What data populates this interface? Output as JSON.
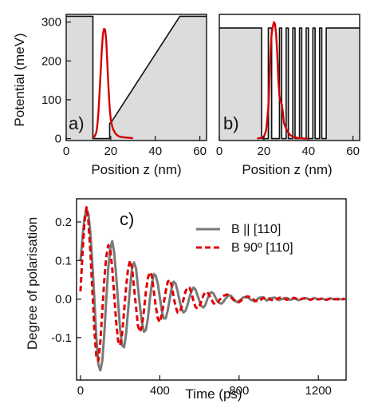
{
  "chart_data": [
    {
      "panel": "a)",
      "type": "line",
      "ylabel": "Potential (meV)",
      "xlabel": "Position z (nm)",
      "xlim": [
        0,
        63
      ],
      "ylim": [
        -5,
        320
      ],
      "xticks": [
        0,
        20,
        40,
        60
      ],
      "yticks": [
        0,
        100,
        200,
        300
      ],
      "fill": "#dcdcdc",
      "series": [
        {
          "color": "#111111",
          "x": [
            0,
            12,
            12,
            19.5,
            19.5,
            20,
            51,
            63
          ],
          "y": [
            315,
            315,
            0,
            0,
            40,
            40,
            315,
            315
          ]
        },
        {
          "color": "#d40000",
          "x": [
            12.5,
            13.5,
            14,
            14.5,
            15,
            15.5,
            16,
            16.5,
            17,
            17.5,
            18,
            18.5,
            19,
            19.5,
            20,
            20.5,
            21,
            22,
            23,
            24,
            26,
            28,
            30
          ],
          "y": [
            3,
            15,
            35,
            70,
            120,
            175,
            230,
            270,
            283,
            280,
            250,
            190,
            130,
            80,
            50,
            35,
            25,
            14,
            8,
            5,
            3,
            2,
            1
          ]
        }
      ]
    },
    {
      "panel": "b)",
      "type": "line",
      "xlabel": "Position z (nm)",
      "xlim": [
        0,
        63
      ],
      "ylim": [
        -5,
        320
      ],
      "xticks": [
        0,
        20,
        40,
        60
      ],
      "fill": "#dcdcdc",
      "series": [
        {
          "color": "#111111",
          "x": [
            0,
            19,
            19,
            22,
            22,
            23.5,
            23.5,
            27,
            27,
            28,
            28,
            30,
            30,
            31,
            31,
            33,
            33,
            34,
            34,
            36,
            36,
            37,
            37,
            39,
            39,
            40,
            40,
            42,
            42,
            43,
            43,
            45,
            45,
            46,
            46,
            48,
            48,
            63
          ],
          "y": [
            285,
            285,
            0,
            0,
            285,
            285,
            0,
            0,
            285,
            285,
            0,
            0,
            285,
            285,
            0,
            0,
            285,
            285,
            0,
            0,
            285,
            285,
            0,
            0,
            285,
            285,
            0,
            0,
            285,
            285,
            0,
            0,
            285,
            285,
            0,
            0,
            285,
            285
          ]
        },
        {
          "color": "#d40000",
          "x": [
            17,
            19,
            20,
            21,
            22,
            22.5,
            23,
            23.5,
            24,
            24.5,
            25,
            25.5,
            26,
            26.5,
            27,
            27.5,
            28,
            28.5,
            29,
            30,
            31,
            32,
            33,
            34,
            35,
            36,
            38,
            40
          ],
          "y": [
            0,
            2,
            5,
            20,
            80,
            150,
            220,
            270,
            288,
            300,
            295,
            270,
            220,
            150,
            110,
            95,
            90,
            70,
            40,
            25,
            15,
            8,
            5,
            3,
            2,
            1,
            0,
            0
          ]
        }
      ]
    },
    {
      "panel": "c)",
      "type": "line",
      "ylabel": "Degree of polarisation",
      "xlabel": "Time (ps)",
      "xlim": [
        -20,
        1340
      ],
      "ylim": [
        -0.21,
        0.26
      ],
      "xticks": [
        0,
        400,
        800,
        1200
      ],
      "yticks": [
        -0.1,
        0.0,
        0.1,
        0.2
      ],
      "legend": "top-right",
      "series": [
        {
          "name": "B || [110]",
          "color": "#7a7a7a",
          "style": "solid",
          "x": [
            0,
            10,
            20,
            30,
            40,
            50,
            60,
            70,
            80,
            90,
            100,
            110,
            120,
            130,
            140,
            150,
            160,
            170,
            180,
            190,
            200,
            210,
            220,
            230,
            240,
            250,
            260,
            270,
            280,
            290,
            300,
            310,
            320,
            330,
            340,
            350,
            360,
            370,
            380,
            390,
            400,
            410,
            420,
            430,
            440,
            450,
            460,
            470,
            480,
            490,
            500,
            510,
            520,
            530,
            540,
            550,
            560,
            570,
            580,
            590,
            600,
            610,
            620,
            630,
            640,
            650,
            660,
            670,
            680,
            690,
            700,
            710,
            720,
            730,
            740,
            750,
            760,
            770,
            780,
            790,
            800,
            820,
            840,
            860,
            880,
            900,
            920,
            940,
            960,
            980,
            1000,
            1020,
            1040,
            1060,
            1080,
            1100,
            1120,
            1140,
            1160,
            1180,
            1200,
            1220,
            1240,
            1260,
            1280,
            1300,
            1320,
            1335
          ],
          "y": [
            0.1,
            0.16,
            0.21,
            0.235,
            0.22,
            0.17,
            0.09,
            0.0,
            -0.1,
            -0.17,
            -0.185,
            -0.16,
            -0.09,
            0.0,
            0.08,
            0.13,
            0.15,
            0.12,
            0.06,
            -0.01,
            -0.08,
            -0.12,
            -0.125,
            -0.09,
            -0.03,
            0.03,
            0.08,
            0.095,
            0.08,
            0.03,
            -0.02,
            -0.06,
            -0.085,
            -0.08,
            -0.05,
            0.0,
            0.04,
            0.065,
            0.06,
            0.04,
            0.005,
            -0.03,
            -0.05,
            -0.05,
            -0.03,
            0.0,
            0.03,
            0.045,
            0.04,
            0.02,
            -0.005,
            -0.025,
            -0.035,
            -0.03,
            -0.015,
            0.005,
            0.02,
            0.03,
            0.025,
            0.01,
            -0.005,
            -0.018,
            -0.022,
            -0.015,
            0.0,
            0.012,
            0.018,
            0.015,
            0.005,
            -0.005,
            -0.01,
            -0.012,
            -0.008,
            0.0,
            0.006,
            0.01,
            0.008,
            0.002,
            -0.004,
            -0.008,
            -0.005,
            0.004,
            0.006,
            -0.002,
            -0.006,
            0.003,
            0.005,
            -0.004,
            0.002,
            0.004,
            -0.003,
            0.001,
            0.003,
            -0.002,
            0.002,
            -0.003,
            0.001,
            0.002,
            -0.002,
            0.003,
            -0.001,
            0.001,
            -0.002,
            0.002,
            -0.001,
            0.001,
            -0.001,
            0.0
          ]
        },
        {
          "name": "B 90º [110]",
          "color": "#e00000",
          "style": "dashed",
          "x": [
            0,
            10,
            20,
            30,
            40,
            50,
            60,
            70,
            80,
            90,
            100,
            110,
            120,
            130,
            140,
            150,
            160,
            170,
            180,
            190,
            200,
            210,
            220,
            230,
            240,
            250,
            260,
            270,
            280,
            290,
            300,
            310,
            320,
            330,
            340,
            350,
            360,
            370,
            380,
            390,
            400,
            410,
            420,
            430,
            440,
            450,
            460,
            470,
            480,
            490,
            500,
            510,
            520,
            530,
            540,
            550,
            560,
            570,
            580,
            590,
            600,
            610,
            620,
            630,
            640,
            650,
            660,
            670,
            680,
            690,
            700,
            720,
            740,
            760,
            780,
            800,
            820,
            840,
            860,
            880,
            900,
            920,
            940,
            960,
            980,
            1000,
            1020,
            1040,
            1060,
            1080,
            1100,
            1120,
            1140,
            1160,
            1180,
            1200,
            1220,
            1240,
            1260,
            1280,
            1300,
            1320,
            1335
          ],
          "y": [
            0.02,
            0.12,
            0.2,
            0.238,
            0.2,
            0.12,
            0.02,
            -0.08,
            -0.15,
            -0.16,
            -0.11,
            -0.03,
            0.05,
            0.11,
            0.14,
            0.13,
            0.08,
            0.01,
            -0.06,
            -0.11,
            -0.12,
            -0.09,
            -0.03,
            0.03,
            0.08,
            0.1,
            0.08,
            0.03,
            -0.02,
            -0.07,
            -0.085,
            -0.07,
            -0.03,
            0.02,
            0.055,
            0.07,
            0.06,
            0.02,
            -0.02,
            -0.05,
            -0.06,
            -0.04,
            -0.01,
            0.02,
            0.045,
            0.05,
            0.035,
            0.005,
            -0.02,
            -0.035,
            -0.035,
            -0.02,
            0.0,
            0.02,
            0.03,
            0.03,
            0.015,
            -0.005,
            -0.02,
            -0.025,
            -0.018,
            -0.005,
            0.01,
            0.018,
            0.018,
            0.01,
            0.0,
            -0.01,
            -0.014,
            -0.01,
            -0.003,
            0.008,
            0.012,
            0.004,
            -0.006,
            -0.008,
            0.0,
            0.007,
            0.005,
            -0.004,
            -0.006,
            0.002,
            0.005,
            -0.002,
            -0.004,
            0.003,
            0.004,
            -0.002,
            0.002,
            0.003,
            -0.002,
            0.001,
            0.003,
            -0.002,
            0.002,
            -0.001,
            0.002,
            -0.002,
            0.001,
            0.0,
            -0.001,
            0.001,
            0.0
          ]
        }
      ]
    }
  ]
}
